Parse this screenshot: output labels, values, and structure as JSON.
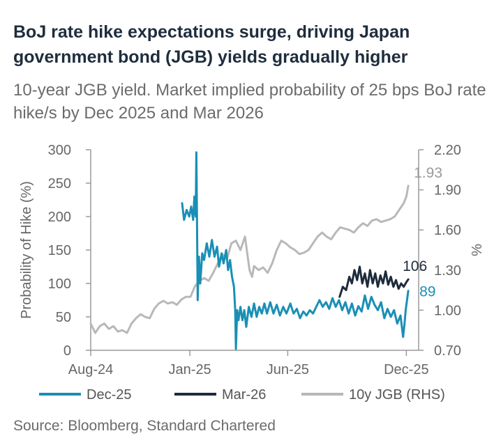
{
  "title": "BoJ rate hike expectations surge, driving Japan government bond (JGB) yields gradually higher",
  "subtitle": "10-year JGB yield. Market implied probability of 25 bps BoJ rate hike/s by Dec 2025 and Mar 2026",
  "source": "Source: Bloomberg, Standard Chartered",
  "colors": {
    "dec25": "#1a8fb5",
    "mar26": "#1e2b3c",
    "jgb": "#b8b8b8",
    "axis": "#9a9a9a"
  },
  "chart_data": {
    "type": "line",
    "xlabel": "",
    "ylabel": "Probability of Hike (%)",
    "y2label": "%",
    "xlim": [
      "2024-08-01",
      "2025-12-20"
    ],
    "x_ticks": [
      {
        "date": "2024-08-01",
        "label": "Aug-24"
      },
      {
        "date": "2025-01-01",
        "label": "Jan-25"
      },
      {
        "date": "2025-06-01",
        "label": "Jun-25"
      },
      {
        "date": "2025-12-01",
        "label": "Dec-25"
      }
    ],
    "ylim": [
      0,
      300
    ],
    "y_ticks": [
      "0",
      "50",
      "100",
      "150",
      "200",
      "250",
      "300"
    ],
    "y2lim": [
      0.7,
      2.2
    ],
    "y2_ticks": [
      "0.70",
      "1.00",
      "1.30",
      "1.60",
      "1.90",
      "2.20"
    ],
    "legend_position": "bottom",
    "series": [
      {
        "name": "Dec-25",
        "axis": "left",
        "end_label": "89",
        "points": [
          [
            "2024-12-20",
            220
          ],
          [
            "2024-12-23",
            195
          ],
          [
            "2024-12-27",
            210
          ],
          [
            "2024-12-31",
            200
          ],
          [
            "2025-01-03",
            215
          ],
          [
            "2025-01-06",
            195
          ],
          [
            "2025-01-08",
            230
          ],
          [
            "2025-01-10",
            200
          ],
          [
            "2025-01-11",
            296
          ],
          [
            "2025-01-12",
            200
          ],
          [
            "2025-01-13",
            75
          ],
          [
            "2025-01-15",
            140
          ],
          [
            "2025-01-17",
            100
          ],
          [
            "2025-01-20",
            145
          ],
          [
            "2025-01-23",
            135
          ],
          [
            "2025-01-27",
            160
          ],
          [
            "2025-01-31",
            140
          ],
          [
            "2025-02-04",
            165
          ],
          [
            "2025-02-08",
            140
          ],
          [
            "2025-02-12",
            155
          ],
          [
            "2025-02-15",
            125
          ],
          [
            "2025-02-19",
            145
          ],
          [
            "2025-02-22",
            130
          ],
          [
            "2025-02-26",
            150
          ],
          [
            "2025-03-01",
            120
          ],
          [
            "2025-03-04",
            135
          ],
          [
            "2025-03-07",
            110
          ],
          [
            "2025-03-10",
            95
          ],
          [
            "2025-03-12",
            60
          ],
          [
            "2025-03-13",
            2
          ],
          [
            "2025-03-15",
            60
          ],
          [
            "2025-03-17",
            45
          ],
          [
            "2025-03-20",
            65
          ],
          [
            "2025-03-23",
            45
          ],
          [
            "2025-03-26",
            60
          ],
          [
            "2025-03-29",
            35
          ],
          [
            "2025-04-02",
            65
          ],
          [
            "2025-04-06",
            50
          ],
          [
            "2025-04-10",
            70
          ],
          [
            "2025-04-14",
            50
          ],
          [
            "2025-04-18",
            65
          ],
          [
            "2025-04-22",
            55
          ],
          [
            "2025-04-26",
            70
          ],
          [
            "2025-04-30",
            55
          ],
          [
            "2025-05-05",
            72
          ],
          [
            "2025-05-10",
            55
          ],
          [
            "2025-05-15",
            68
          ],
          [
            "2025-05-20",
            52
          ],
          [
            "2025-05-25",
            65
          ],
          [
            "2025-05-30",
            55
          ],
          [
            "2025-06-05",
            70
          ],
          [
            "2025-06-10",
            55
          ],
          [
            "2025-06-15",
            62
          ],
          [
            "2025-06-20",
            48
          ],
          [
            "2025-06-25",
            58
          ],
          [
            "2025-06-30",
            52
          ],
          [
            "2025-07-05",
            60
          ],
          [
            "2025-07-10",
            55
          ],
          [
            "2025-07-15",
            65
          ],
          [
            "2025-07-20",
            75
          ],
          [
            "2025-07-25",
            65
          ],
          [
            "2025-07-30",
            72
          ],
          [
            "2025-08-04",
            62
          ],
          [
            "2025-08-09",
            78
          ],
          [
            "2025-08-14",
            65
          ],
          [
            "2025-08-19",
            75
          ],
          [
            "2025-08-24",
            60
          ],
          [
            "2025-08-29",
            72
          ],
          [
            "2025-09-03",
            55
          ],
          [
            "2025-09-08",
            70
          ],
          [
            "2025-09-13",
            52
          ],
          [
            "2025-09-18",
            66
          ],
          [
            "2025-09-23",
            58
          ],
          [
            "2025-09-28",
            82
          ],
          [
            "2025-10-03",
            62
          ],
          [
            "2025-10-08",
            80
          ],
          [
            "2025-10-13",
            68
          ],
          [
            "2025-10-18",
            60
          ],
          [
            "2025-10-23",
            72
          ],
          [
            "2025-10-28",
            48
          ],
          [
            "2025-11-02",
            62
          ],
          [
            "2025-11-07",
            50
          ],
          [
            "2025-11-12",
            60
          ],
          [
            "2025-11-17",
            40
          ],
          [
            "2025-11-22",
            52
          ],
          [
            "2025-11-26",
            20
          ],
          [
            "2025-11-28",
            38
          ],
          [
            "2025-11-30",
            60
          ],
          [
            "2025-12-02",
            75
          ],
          [
            "2025-12-04",
            89
          ]
        ]
      },
      {
        "name": "Mar-26",
        "axis": "left",
        "end_label": "106",
        "points": [
          [
            "2025-08-20",
            80
          ],
          [
            "2025-08-25",
            95
          ],
          [
            "2025-08-30",
            90
          ],
          [
            "2025-09-04",
            110
          ],
          [
            "2025-09-08",
            100
          ],
          [
            "2025-09-12",
            120
          ],
          [
            "2025-09-16",
            105
          ],
          [
            "2025-09-20",
            125
          ],
          [
            "2025-09-24",
            100
          ],
          [
            "2025-09-28",
            115
          ],
          [
            "2025-10-02",
            95
          ],
          [
            "2025-10-06",
            120
          ],
          [
            "2025-10-10",
            100
          ],
          [
            "2025-10-14",
            115
          ],
          [
            "2025-10-18",
            95
          ],
          [
            "2025-10-22",
            112
          ],
          [
            "2025-10-26",
            100
          ],
          [
            "2025-10-30",
            118
          ],
          [
            "2025-11-03",
            98
          ],
          [
            "2025-11-07",
            110
          ],
          [
            "2025-11-11",
            95
          ],
          [
            "2025-11-15",
            105
          ],
          [
            "2025-11-19",
            92
          ],
          [
            "2025-11-23",
            100
          ],
          [
            "2025-11-27",
            95
          ],
          [
            "2025-12-01",
            102
          ],
          [
            "2025-12-04",
            106
          ]
        ]
      },
      {
        "name": "10y JGB (RHS)",
        "axis": "right",
        "end_label": "1.93",
        "points": [
          [
            "2024-08-01",
            0.9
          ],
          [
            "2024-08-08",
            0.83
          ],
          [
            "2024-08-15",
            0.88
          ],
          [
            "2024-08-22",
            0.9
          ],
          [
            "2024-08-29",
            0.86
          ],
          [
            "2024-09-05",
            0.88
          ],
          [
            "2024-09-12",
            0.84
          ],
          [
            "2024-09-19",
            0.85
          ],
          [
            "2024-09-26",
            0.83
          ],
          [
            "2024-10-03",
            0.9
          ],
          [
            "2024-10-10",
            0.94
          ],
          [
            "2024-10-17",
            0.97
          ],
          [
            "2024-10-24",
            0.95
          ],
          [
            "2024-10-31",
            0.94
          ],
          [
            "2024-11-07",
            1.01
          ],
          [
            "2024-11-14",
            1.05
          ],
          [
            "2024-11-21",
            1.07
          ],
          [
            "2024-11-28",
            1.05
          ],
          [
            "2024-12-05",
            1.06
          ],
          [
            "2024-12-12",
            1.04
          ],
          [
            "2024-12-19",
            1.08
          ],
          [
            "2024-12-26",
            1.1
          ],
          [
            "2025-01-02",
            1.1
          ],
          [
            "2025-01-09",
            1.18
          ],
          [
            "2025-01-16",
            1.22
          ],
          [
            "2025-01-23",
            1.24
          ],
          [
            "2025-01-30",
            1.22
          ],
          [
            "2025-02-06",
            1.28
          ],
          [
            "2025-02-13",
            1.35
          ],
          [
            "2025-02-20",
            1.42
          ],
          [
            "2025-02-27",
            1.38
          ],
          [
            "2025-03-06",
            1.5
          ],
          [
            "2025-03-13",
            1.52
          ],
          [
            "2025-03-20",
            1.45
          ],
          [
            "2025-03-27",
            1.55
          ],
          [
            "2025-04-03",
            1.3
          ],
          [
            "2025-04-07",
            1.25
          ],
          [
            "2025-04-10",
            1.33
          ],
          [
            "2025-04-17",
            1.3
          ],
          [
            "2025-04-24",
            1.32
          ],
          [
            "2025-05-01",
            1.28
          ],
          [
            "2025-05-08",
            1.35
          ],
          [
            "2025-05-15",
            1.45
          ],
          [
            "2025-05-22",
            1.52
          ],
          [
            "2025-05-29",
            1.5
          ],
          [
            "2025-06-05",
            1.47
          ],
          [
            "2025-06-12",
            1.45
          ],
          [
            "2025-06-19",
            1.42
          ],
          [
            "2025-06-26",
            1.43
          ],
          [
            "2025-07-03",
            1.45
          ],
          [
            "2025-07-10",
            1.5
          ],
          [
            "2025-07-17",
            1.55
          ],
          [
            "2025-07-24",
            1.58
          ],
          [
            "2025-07-31",
            1.55
          ],
          [
            "2025-08-07",
            1.53
          ],
          [
            "2025-08-14",
            1.58
          ],
          [
            "2025-08-21",
            1.62
          ],
          [
            "2025-08-28",
            1.61
          ],
          [
            "2025-09-04",
            1.6
          ],
          [
            "2025-09-11",
            1.58
          ],
          [
            "2025-09-18",
            1.62
          ],
          [
            "2025-09-25",
            1.65
          ],
          [
            "2025-10-02",
            1.63
          ],
          [
            "2025-10-09",
            1.67
          ],
          [
            "2025-10-16",
            1.68
          ],
          [
            "2025-10-23",
            1.66
          ],
          [
            "2025-10-30",
            1.67
          ],
          [
            "2025-11-06",
            1.68
          ],
          [
            "2025-11-13",
            1.7
          ],
          [
            "2025-11-20",
            1.75
          ],
          [
            "2025-11-27",
            1.8
          ],
          [
            "2025-12-01",
            1.85
          ],
          [
            "2025-12-04",
            1.93
          ]
        ]
      }
    ]
  }
}
